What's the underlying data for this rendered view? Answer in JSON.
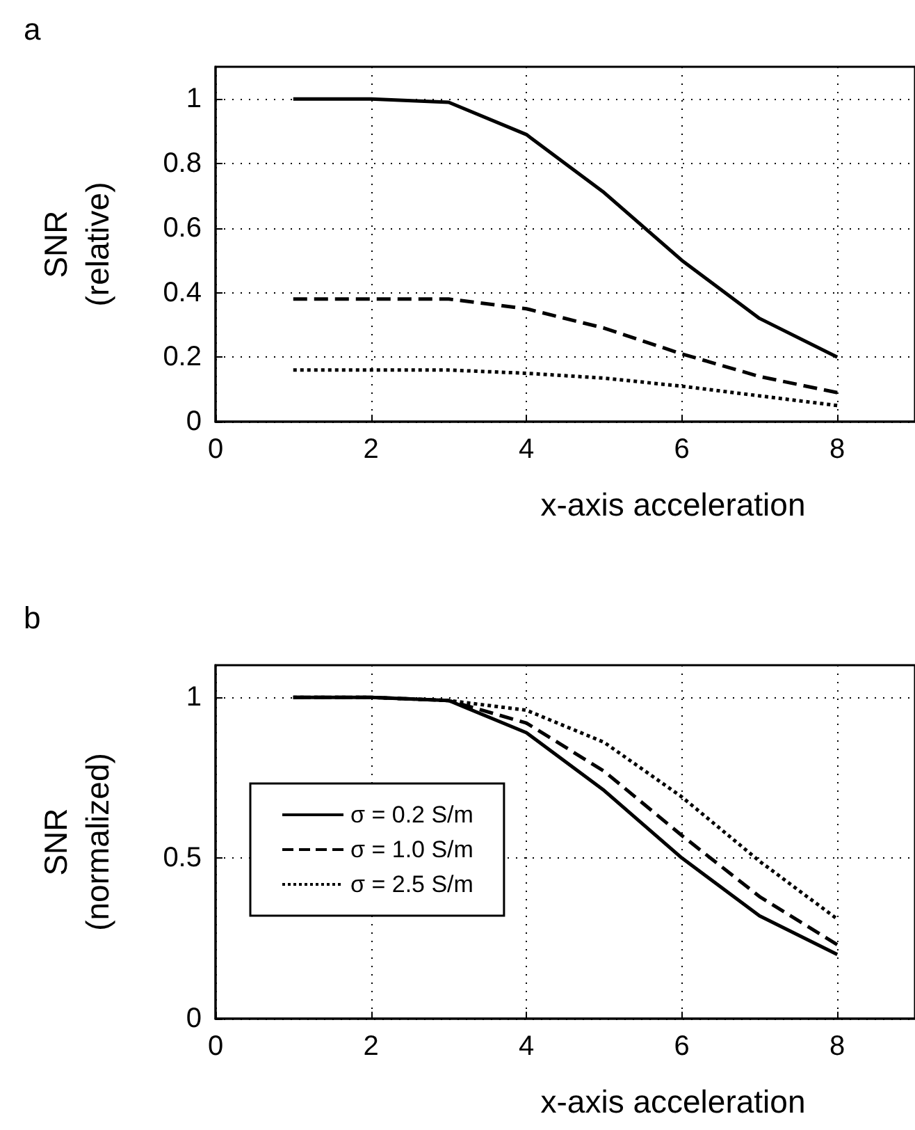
{
  "chart_data": [
    {
      "type": "line",
      "title": "a",
      "xlabel": "x-axis acceleration",
      "ylabel": "SNR\n(relative)",
      "x": [
        1,
        2,
        3,
        4,
        5,
        6,
        7,
        8
      ],
      "xlim": [
        0,
        9
      ],
      "xticks": [
        0,
        2,
        4,
        6,
        8
      ],
      "ylim": [
        0,
        1.1
      ],
      "yticks": [
        0,
        0.2,
        0.4,
        0.6,
        0.8,
        1
      ],
      "grid": true,
      "legend": false,
      "marker": "none",
      "series": [
        {
          "color": "#000000",
          "line_style": "solid",
          "values": [
            1,
            1,
            0.99,
            0.89,
            0.71,
            0.5,
            0.32,
            0.2
          ]
        },
        {
          "color": "#000000",
          "line_style": "dashed",
          "values": [
            0.38,
            0.38,
            0.38,
            0.35,
            0.29,
            0.21,
            0.14,
            0.09
          ]
        },
        {
          "color": "#000000",
          "line_style": "dotted",
          "values": [
            0.16,
            0.16,
            0.16,
            0.15,
            0.135,
            0.11,
            0.08,
            0.05
          ]
        }
      ]
    },
    {
      "type": "line",
      "title": "b",
      "xlabel": "x-axis acceleration",
      "ylabel": "SNR\n(normalized)",
      "x": [
        1,
        2,
        3,
        4,
        5,
        6,
        7,
        8
      ],
      "xlim": [
        0,
        9
      ],
      "xticks": [
        0,
        2,
        4,
        6,
        8
      ],
      "ylim": [
        0,
        1.1
      ],
      "yticks": [
        0,
        0.5,
        1
      ],
      "grid": true,
      "legend": "left",
      "marker": "none",
      "series": [
        {
          "name": "σ = 0.2 S/m",
          "color": "#000000",
          "line_style": "solid",
          "values": [
            1,
            1,
            0.99,
            0.89,
            0.71,
            0.5,
            0.32,
            0.2
          ]
        },
        {
          "name": "σ = 1.0 S/m",
          "color": "#000000",
          "line_style": "dashed",
          "values": [
            1,
            1,
            0.99,
            0.92,
            0.77,
            0.57,
            0.38,
            0.23
          ]
        },
        {
          "name": "σ = 2.5 S/m",
          "color": "#000000",
          "line_style": "dotted",
          "values": [
            1,
            1,
            0.99,
            0.96,
            0.86,
            0.69,
            0.49,
            0.31
          ]
        }
      ]
    }
  ]
}
